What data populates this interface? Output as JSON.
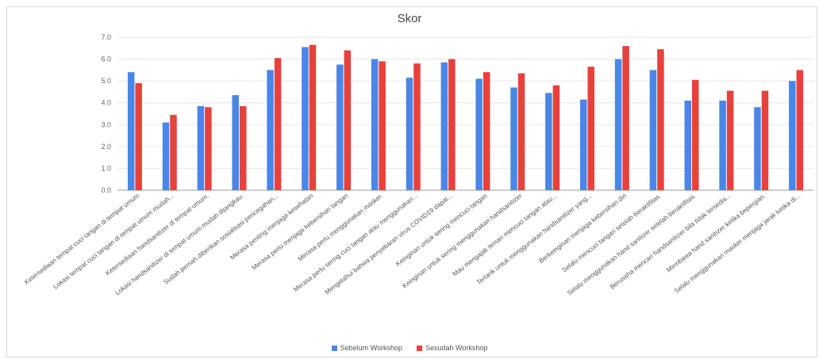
{
  "chart_data": {
    "type": "bar",
    "title": "Skor",
    "xlabel": "",
    "ylabel": "",
    "ylim": [
      0,
      7
    ],
    "yticks": [
      "0.0",
      "1.0",
      "2.0",
      "3.0",
      "4.0",
      "5.0",
      "6.0",
      "7.0"
    ],
    "grid": true,
    "legend_position": "bottom",
    "categories": [
      "Ketersediaan tempat cuci tangan di tempat umum",
      "Lokasi tempat cuci tangan di tempat umum mudah...",
      "Ketersediaan handsanitizer di tempat umum.",
      "Lokasi handsanitizer di tempat umum mudah dijangkau.",
      "Sudah pernah diberikan sosialisasi pencegahan...",
      "Merasa penting menjaga kesehatan",
      "Merasa perlu menjaga kebersihan tangan",
      "Merasa perlu menggunakan masker.",
      "Merasa perlu sering cuci tangan atau menggunakan...",
      "Mengetahui bahwa penyebaran virus COVID19 dapat...",
      "Keinginan untuk sering mencuci tangan",
      "Keinginan untuk sering menggunakan handsanitizer",
      "Mau mengajak teman mencuci tangan atau...",
      "Tertarik untuk menggunakan handsanitizer yang...",
      "Berkeinginan menjaga kebersihan diri",
      "Selalu mencuci tangan setelah beraktifitas.",
      "Selalu menggunakan hand sanitizer setelah beraktifitas.",
      "Berusaha mencari handsanitizer bila tidak tersedia...",
      "Membawa hand sanitizer ketika bepergian.",
      "Selalu menggunakan masker menjaga jarak ketika di..."
    ],
    "series": [
      {
        "name": "Sebelum Workshop",
        "color": "#4a86e8",
        "values": [
          5.4,
          3.1,
          3.85,
          4.35,
          5.5,
          6.55,
          5.75,
          6.0,
          5.15,
          5.85,
          5.1,
          4.7,
          4.45,
          4.15,
          6.0,
          5.5,
          4.1,
          4.1,
          3.8,
          5.0
        ]
      },
      {
        "name": "Sesudah Workshop",
        "color": "#e8413c",
        "values": [
          4.9,
          3.45,
          3.8,
          3.85,
          6.05,
          6.65,
          6.4,
          5.9,
          5.8,
          6.0,
          5.4,
          5.35,
          4.8,
          5.65,
          6.6,
          6.45,
          5.05,
          4.55,
          4.55,
          5.5
        ]
      }
    ]
  }
}
